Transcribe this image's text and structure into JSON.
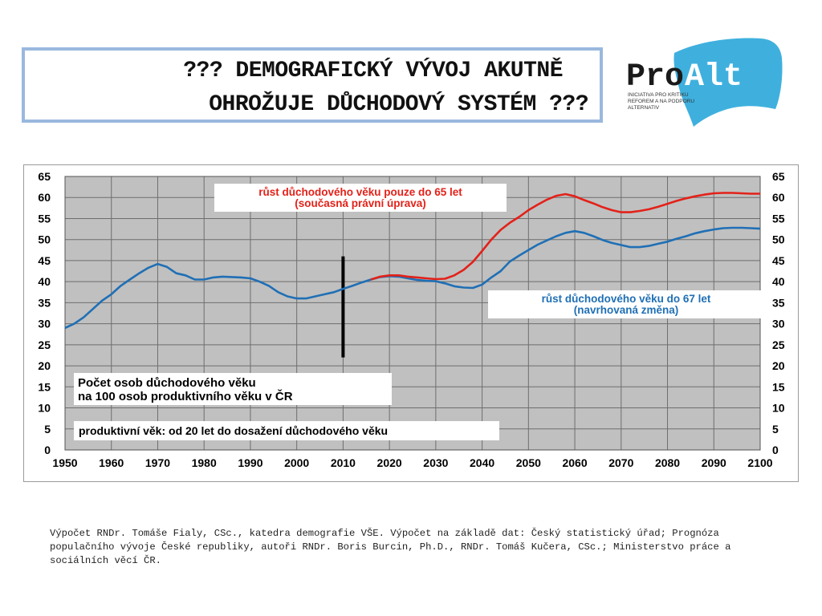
{
  "slide": {
    "title_line1": "??? DEMOGRAFICKÝ VÝVOJ AKUTNĚ",
    "title_line2": "OHROŽUJE DŮCHODOVÝ SYSTÉM ???"
  },
  "logo": {
    "word_pro": "Pro",
    "word_alt": "Alt",
    "tagline": [
      "INICIATIVA PRO KRITIKU",
      "REFOREM A NA PODPORU",
      "ALTERNATIV"
    ],
    "colors": {
      "flag": "#3fb0de",
      "pro": "#1a1a1a",
      "alt": "#ffffff"
    }
  },
  "footnote": "Výpočet RNDr. Tomáše Fialy, CSc., katedra demografie VŠE. Výpočet na základě dat: Český statistický úřad; Prognóza populačního vývoje České republiky, autoři RNDr. Boris Burcin, Ph.D., RNDr. Tomáš Kučera, CSc.; Ministerstvo práce a sociálních věcí ČR.",
  "chart_data": {
    "type": "line",
    "xlim": [
      1950,
      2100
    ],
    "ylim": [
      0,
      65
    ],
    "x_ticks": [
      1950,
      1960,
      1970,
      1980,
      1990,
      2000,
      2010,
      2020,
      2030,
      2040,
      2050,
      2060,
      2070,
      2080,
      2090,
      2100
    ],
    "y_ticks": [
      0,
      5,
      10,
      15,
      20,
      25,
      30,
      35,
      40,
      45,
      50,
      55,
      60,
      65
    ],
    "grid": true,
    "plot_background": "#c0c0c0",
    "vertical_marker": {
      "x": 2010,
      "y_range": [
        22,
        46
      ]
    },
    "annotations": {
      "red_label": [
        "růst důchodového věku pouze do 65 let",
        "(současná právní úprava)"
      ],
      "blue_label": [
        "růst důchodového věku do 67 let",
        "(navrhovaná změna)"
      ],
      "count_label": [
        "Počet osob důchodového věku",
        "na 100 osob produktivního věku v ČR"
      ],
      "productive_label": "produktivní věk: od 20 let do dosažení důchodového věku"
    },
    "series": [
      {
        "color": "#1f6fb5",
        "points": [
          [
            1950,
            29
          ],
          [
            1952,
            30
          ],
          [
            1954,
            31.5
          ],
          [
            1956,
            33.5
          ],
          [
            1958,
            35.5
          ],
          [
            1960,
            37
          ],
          [
            1962,
            39
          ],
          [
            1964,
            40.5
          ],
          [
            1966,
            42
          ],
          [
            1968,
            43.3
          ],
          [
            1970,
            44.2
          ],
          [
            1972,
            43.5
          ],
          [
            1974,
            42
          ],
          [
            1976,
            41.5
          ],
          [
            1978,
            40.5
          ],
          [
            1980,
            40.5
          ],
          [
            1982,
            41
          ],
          [
            1984,
            41.2
          ],
          [
            1986,
            41.1
          ],
          [
            1988,
            41
          ],
          [
            1990,
            40.8
          ],
          [
            1992,
            40
          ],
          [
            1994,
            39
          ],
          [
            1996,
            37.5
          ],
          [
            1998,
            36.5
          ],
          [
            2000,
            36
          ],
          [
            2002,
            36
          ],
          [
            2004,
            36.5
          ],
          [
            2006,
            37
          ],
          [
            2008,
            37.5
          ],
          [
            2010,
            38.3
          ],
          [
            2012,
            39
          ],
          [
            2014,
            39.8
          ],
          [
            2016,
            40.5
          ],
          [
            2018,
            41.1
          ],
          [
            2020,
            41.3
          ],
          [
            2022,
            41.2
          ],
          [
            2024,
            40.8
          ],
          [
            2026,
            40.4
          ],
          [
            2028,
            40.2
          ],
          [
            2030,
            40.1
          ],
          [
            2032,
            39.6
          ],
          [
            2034,
            38.9
          ],
          [
            2036,
            38.6
          ],
          [
            2038,
            38.5
          ],
          [
            2040,
            39.3
          ],
          [
            2042,
            41
          ],
          [
            2044,
            42.5
          ],
          [
            2046,
            44.8
          ],
          [
            2048,
            46.2
          ],
          [
            2050,
            47.5
          ],
          [
            2052,
            48.8
          ],
          [
            2054,
            49.8
          ],
          [
            2056,
            50.8
          ],
          [
            2058,
            51.6
          ],
          [
            2060,
            52
          ],
          [
            2062,
            51.6
          ],
          [
            2064,
            50.8
          ],
          [
            2066,
            49.9
          ],
          [
            2068,
            49.2
          ],
          [
            2070,
            48.7
          ],
          [
            2072,
            48.2
          ],
          [
            2074,
            48.2
          ],
          [
            2076,
            48.5
          ],
          [
            2078,
            49
          ],
          [
            2080,
            49.5
          ],
          [
            2082,
            50.2
          ],
          [
            2084,
            50.8
          ],
          [
            2086,
            51.5
          ],
          [
            2088,
            52
          ],
          [
            2090,
            52.4
          ],
          [
            2092,
            52.7
          ],
          [
            2094,
            52.8
          ],
          [
            2096,
            52.8
          ],
          [
            2098,
            52.7
          ],
          [
            2100,
            52.6
          ]
        ]
      },
      {
        "color": "#e32119",
        "points": [
          [
            2016,
            40.5
          ],
          [
            2018,
            41.2
          ],
          [
            2020,
            41.5
          ],
          [
            2022,
            41.5
          ],
          [
            2024,
            41.2
          ],
          [
            2026,
            41
          ],
          [
            2028,
            40.8
          ],
          [
            2030,
            40.6
          ],
          [
            2032,
            40.7
          ],
          [
            2034,
            41.5
          ],
          [
            2036,
            42.8
          ],
          [
            2038,
            44.7
          ],
          [
            2040,
            47.3
          ],
          [
            2042,
            50
          ],
          [
            2044,
            52.3
          ],
          [
            2046,
            54
          ],
          [
            2048,
            55.4
          ],
          [
            2050,
            57
          ],
          [
            2052,
            58.3
          ],
          [
            2054,
            59.5
          ],
          [
            2056,
            60.4
          ],
          [
            2058,
            60.8
          ],
          [
            2060,
            60.3
          ],
          [
            2062,
            59.4
          ],
          [
            2064,
            58.6
          ],
          [
            2066,
            57.7
          ],
          [
            2068,
            57
          ],
          [
            2070,
            56.5
          ],
          [
            2072,
            56.5
          ],
          [
            2074,
            56.8
          ],
          [
            2076,
            57.2
          ],
          [
            2078,
            57.8
          ],
          [
            2080,
            58.5
          ],
          [
            2082,
            59.2
          ],
          [
            2084,
            59.8
          ],
          [
            2086,
            60.3
          ],
          [
            2088,
            60.7
          ],
          [
            2090,
            61
          ],
          [
            2092,
            61.1
          ],
          [
            2094,
            61.1
          ],
          [
            2096,
            61
          ],
          [
            2098,
            60.9
          ],
          [
            2100,
            60.9
          ]
        ]
      }
    ]
  }
}
